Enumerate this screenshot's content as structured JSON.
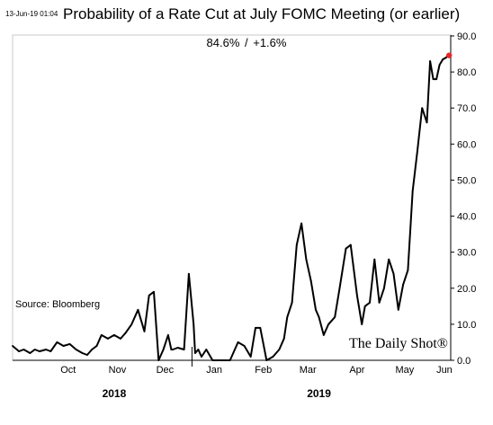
{
  "header": {
    "timestamp": "13-Jun-19 01:04",
    "current_readout": "84.6%  /  +1.6%"
  },
  "source_note": "Source: Bloomberg",
  "brand": "The Daily Shot®",
  "chart_data": {
    "type": "line",
    "title": "Probability of a Rate Cut at July FOMC Meeting (or earlier)",
    "xlabel": "",
    "ylabel": "",
    "ylim": [
      0,
      90
    ],
    "y_axis_position": "right",
    "y_ticks": [
      0,
      10,
      20,
      30,
      40,
      50,
      60,
      70,
      80,
      90
    ],
    "y_tick_labels": [
      "0.0",
      "10.0",
      "20.0",
      "30.0",
      "40.0",
      "50.0",
      "60.0",
      "70.0",
      "80.0",
      "90.0"
    ],
    "x_range": [
      "2018-09-10",
      "2019-06-13"
    ],
    "month_labels": [
      {
        "label": "Oct",
        "date": "2018-10-15"
      },
      {
        "label": "Nov",
        "date": "2018-11-15"
      },
      {
        "label": "Dec",
        "date": "2018-12-15"
      },
      {
        "label": "Jan",
        "date": "2019-01-15"
      },
      {
        "label": "Feb",
        "date": "2019-02-15"
      },
      {
        "label": "Mar",
        "date": "2019-03-15"
      },
      {
        "label": "Apr",
        "date": "2019-04-15"
      },
      {
        "label": "May",
        "date": "2019-05-15"
      },
      {
        "label": "Jun",
        "date": "2019-06-09"
      }
    ],
    "year_labels": [
      {
        "label": "2018",
        "date": "2018-11-13"
      },
      {
        "label": "2019",
        "date": "2019-03-22"
      }
    ],
    "year_separator_date": "2019-01-01",
    "grid": false,
    "legend": "none",
    "line_color": "#000000",
    "last_point_color": "#e8262c",
    "series": [
      {
        "x": [
          "2018-09-10",
          "2018-09-14",
          "2018-09-17",
          "2018-09-21",
          "2018-09-24",
          "2018-09-27",
          "2018-10-01",
          "2018-10-04",
          "2018-10-08",
          "2018-10-12",
          "2018-10-16",
          "2018-10-20",
          "2018-10-24",
          "2018-10-27",
          "2018-10-30",
          "2018-11-02",
          "2018-11-05",
          "2018-11-09",
          "2018-11-13",
          "2018-11-17",
          "2018-11-20",
          "2018-11-24",
          "2018-11-28",
          "2018-12-02",
          "2018-12-05",
          "2018-12-08",
          "2018-12-11",
          "2018-12-14",
          "2018-12-17",
          "2018-12-19",
          "2018-12-20",
          "2018-12-23",
          "2018-12-27",
          "2018-12-30",
          "2019-01-02",
          "2019-01-03",
          "2019-01-05",
          "2019-01-07",
          "2019-01-10",
          "2019-01-14",
          "2019-01-16",
          "2019-01-20",
          "2019-01-25",
          "2019-01-30",
          "2019-02-03",
          "2019-02-07",
          "2019-02-10",
          "2019-02-13",
          "2019-02-17",
          "2019-02-21",
          "2019-02-25",
          "2019-02-28",
          "2019-03-02",
          "2019-03-05",
          "2019-03-08",
          "2019-03-11",
          "2019-03-14",
          "2019-03-17",
          "2019-03-20",
          "2019-03-22",
          "2019-03-25",
          "2019-03-28",
          "2019-04-01",
          "2019-04-04",
          "2019-04-08",
          "2019-04-11",
          "2019-04-15",
          "2019-04-18",
          "2019-04-20",
          "2019-04-23",
          "2019-04-26",
          "2019-04-29",
          "2019-05-02",
          "2019-05-05",
          "2019-05-08",
          "2019-05-11",
          "2019-05-14",
          "2019-05-17",
          "2019-05-20",
          "2019-05-23",
          "2019-05-26",
          "2019-05-29",
          "2019-05-31",
          "2019-06-02",
          "2019-06-04",
          "2019-06-06",
          "2019-06-08",
          "2019-06-10",
          "2019-06-12"
        ],
        "values": [
          4,
          2.5,
          3,
          2,
          3,
          2.5,
          3,
          2.5,
          5,
          4,
          4.5,
          3,
          2,
          1.5,
          3,
          4,
          7,
          6,
          7,
          6,
          7.5,
          10,
          14,
          8,
          18,
          19,
          0,
          3,
          7,
          3,
          3,
          3.5,
          3,
          24,
          10,
          2,
          3,
          1,
          3,
          0,
          0,
          0,
          0,
          5,
          4,
          1,
          9,
          9,
          0,
          1,
          3,
          6,
          12,
          16,
          32,
          38,
          28,
          22,
          14,
          12,
          7,
          10,
          12,
          20,
          31,
          32,
          18,
          10,
          15,
          16,
          28,
          16,
          20,
          28,
          24,
          14,
          21,
          25,
          47,
          58,
          70,
          66,
          83,
          78,
          78,
          82,
          83.5,
          84,
          84.6
        ]
      }
    ],
    "annotations": [
      "84.6%  /  +1.6%",
      "Source: Bloomberg",
      "The Daily Shot®"
    ]
  }
}
